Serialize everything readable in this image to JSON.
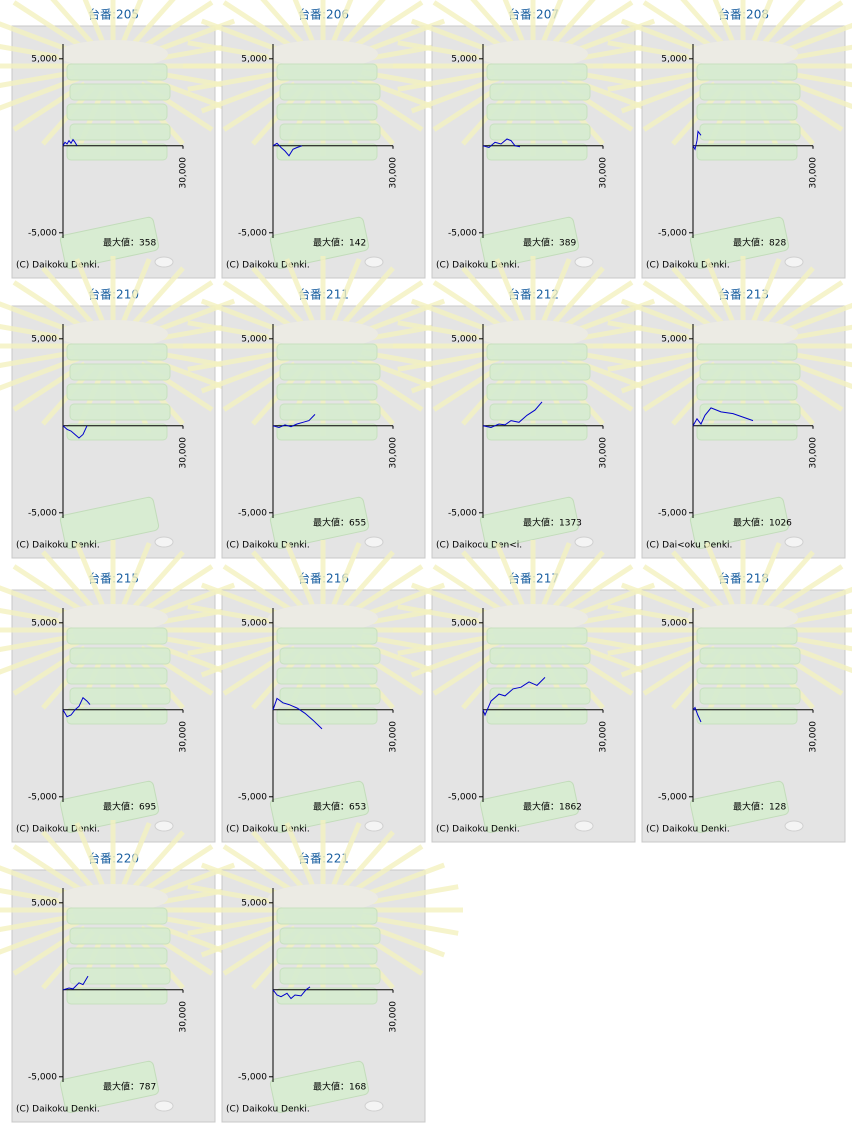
{
  "chart_data": [
    {
      "type": "line",
      "title": "台番:205",
      "x": [
        0,
        500,
        1000,
        1500,
        2000,
        2500,
        3000,
        3500
      ],
      "values": [
        0,
        200,
        100,
        300,
        150,
        358,
        200,
        0
      ],
      "color": "#0000cc",
      "xlim": [
        0,
        30000
      ],
      "ylim": [
        -5300,
        5850
      ],
      "xticks": [
        {
          "value": 30000,
          "label": "30,000"
        }
      ],
      "yticks": [
        {
          "value": 5000,
          "label": "5,000"
        },
        {
          "value": -5000,
          "label": "-5,000"
        }
      ],
      "annotation": "最大値：358",
      "credit": "(C) Daikoku Denki."
    },
    {
      "type": "line",
      "title": "台番:206",
      "x": [
        0,
        1000,
        2000,
        3000,
        4000,
        5000,
        6000,
        7250
      ],
      "values": [
        0,
        142,
        -100,
        -300,
        -575,
        -200,
        -100,
        0
      ],
      "color": "#0000cc",
      "xlim": [
        0,
        30000
      ],
      "ylim": [
        -5300,
        5850
      ],
      "xticks": [
        {
          "value": 30000,
          "label": "30,000"
        }
      ],
      "yticks": [
        {
          "value": 5000,
          "label": "5,000"
        },
        {
          "value": -5000,
          "label": "-5,000"
        }
      ],
      "annotation": "最大値：142",
      "credit": "(C) Daikoku Denki."
    },
    {
      "type": "line",
      "title": "台番:207",
      "x": [
        0,
        1500,
        3000,
        4500,
        6000,
        7000,
        8000,
        9250
      ],
      "values": [
        0,
        -100,
        200,
        100,
        389,
        300,
        0,
        -50
      ],
      "color": "#0000cc",
      "xlim": [
        0,
        30000
      ],
      "ylim": [
        -5300,
        5850
      ],
      "xticks": [
        {
          "value": 30000,
          "label": "30,000"
        }
      ],
      "yticks": [
        {
          "value": 5000,
          "label": "5,000"
        },
        {
          "value": -5000,
          "label": "-5,000"
        }
      ],
      "annotation": "最大値：389",
      "credit": "(C) Daikoku Denki."
    },
    {
      "type": "line",
      "title": "台番:208",
      "x": [
        0,
        500,
        1000,
        1250,
        2000
      ],
      "values": [
        0,
        -200,
        300,
        828,
        600
      ],
      "color": "#0000cc",
      "xlim": [
        0,
        30000
      ],
      "ylim": [
        -5300,
        5850
      ],
      "xticks": [
        {
          "value": 30000,
          "label": "30,000"
        }
      ],
      "yticks": [
        {
          "value": 5000,
          "label": "5,000"
        },
        {
          "value": -5000,
          "label": "-5,000"
        }
      ],
      "annotation": "最大値：828",
      "credit": "(C) Daikoku Denki."
    },
    {
      "type": "line",
      "title": "台番:210",
      "x": [
        0,
        1000,
        2000,
        3000,
        4000,
        5000,
        6000
      ],
      "values": [
        0,
        -200,
        -300,
        -500,
        -700,
        -500,
        0
      ],
      "color": "#0000cc",
      "xlim": [
        0,
        30000
      ],
      "ylim": [
        -5300,
        5850
      ],
      "xticks": [
        {
          "value": 30000,
          "label": "30,000"
        }
      ],
      "yticks": [
        {
          "value": 5000,
          "label": "5,000"
        },
        {
          "value": -5000,
          "label": "-5,000"
        }
      ],
      "credit": "(C) Daikoku Denki."
    },
    {
      "type": "line",
      "title": "台番:211",
      "x": [
        0,
        1500,
        3000,
        4500,
        6000,
        7500,
        9000,
        10500
      ],
      "values": [
        0,
        -100,
        50,
        -50,
        100,
        200,
        300,
        655
      ],
      "color": "#0000cc",
      "xlim": [
        0,
        30000
      ],
      "ylim": [
        -5300,
        5850
      ],
      "xticks": [
        {
          "value": 30000,
          "label": "30,000"
        }
      ],
      "yticks": [
        {
          "value": 5000,
          "label": "5,000"
        },
        {
          "value": -5000,
          "label": "-5,000"
        }
      ],
      "annotation": "最大値：655",
      "credit": "(C) Daikoku Denki."
    },
    {
      "type": "line",
      "title": "台番:212",
      "x": [
        0,
        2000,
        4000,
        5500,
        7000,
        9000,
        11000,
        13000,
        14750
      ],
      "values": [
        0,
        -100,
        100,
        50,
        300,
        200,
        600,
        900,
        1373
      ],
      "color": "#0000cc",
      "xlim": [
        0,
        30000
      ],
      "ylim": [
        -5300,
        5850
      ],
      "xticks": [
        {
          "value": 30000,
          "label": "30,000"
        }
      ],
      "yticks": [
        {
          "value": 5000,
          "label": "5,000"
        },
        {
          "value": -5000,
          "label": "-5,000"
        }
      ],
      "annotation": "最大値：1373",
      "credit": "(C) Daikocu Den<i."
    },
    {
      "type": "line",
      "title": "台番:213",
      "x": [
        0,
        1000,
        2000,
        3000,
        4500,
        7000,
        10000,
        12500,
        15000
      ],
      "values": [
        0,
        400,
        100,
        600,
        1026,
        800,
        700,
        500,
        300
      ],
      "color": "#0000cc",
      "xlim": [
        0,
        30000
      ],
      "ylim": [
        -5300,
        5850
      ],
      "xticks": [
        {
          "value": 30000,
          "label": "30,000"
        }
      ],
      "yticks": [
        {
          "value": 5000,
          "label": "5,000"
        },
        {
          "value": -5000,
          "label": "-5,000"
        }
      ],
      "annotation": "最大値：1026",
      "credit": "(C) Dai<oku Denki."
    },
    {
      "type": "line",
      "title": "台番:215",
      "x": [
        0,
        1000,
        2000,
        3000,
        4000,
        5000,
        6000,
        6750
      ],
      "values": [
        0,
        -400,
        -300,
        0,
        200,
        695,
        500,
        300
      ],
      "color": "#0000cc",
      "xlim": [
        0,
        30000
      ],
      "ylim": [
        -5300,
        5850
      ],
      "xticks": [
        {
          "value": 30000,
          "label": "30,000"
        }
      ],
      "yticks": [
        {
          "value": 5000,
          "label": "5,000"
        },
        {
          "value": -5000,
          "label": "-5,000"
        }
      ],
      "annotation": "最大値：695",
      "credit": "(C) Daikoku Denki."
    },
    {
      "type": "line",
      "title": "台番:216",
      "x": [
        0,
        1000,
        2500,
        4000,
        6000,
        8000,
        10000,
        12250
      ],
      "values": [
        0,
        653,
        400,
        300,
        100,
        -200,
        -600,
        -1100
      ],
      "color": "#0000cc",
      "xlim": [
        0,
        30000
      ],
      "ylim": [
        -5300,
        5850
      ],
      "xticks": [
        {
          "value": 30000,
          "label": "30,000"
        }
      ],
      "yticks": [
        {
          "value": 5000,
          "label": "5,000"
        },
        {
          "value": -5000,
          "label": "-5,000"
        }
      ],
      "annotation": "最大値：653",
      "credit": "(C) Daikoku Denki."
    },
    {
      "type": "line",
      "title": "台番:217",
      "x": [
        0,
        500,
        2000,
        4000,
        5500,
        7500,
        9500,
        11500,
        13500,
        15500
      ],
      "values": [
        0,
        -300,
        500,
        900,
        800,
        1200,
        1300,
        1600,
        1400,
        1862
      ],
      "color": "#0000cc",
      "xlim": [
        0,
        30000
      ],
      "ylim": [
        -5300,
        5850
      ],
      "xticks": [
        {
          "value": 30000,
          "label": "30,000"
        }
      ],
      "yticks": [
        {
          "value": 5000,
          "label": "5,000"
        },
        {
          "value": -5000,
          "label": "-5,000"
        }
      ],
      "annotation": "最大値：1862",
      "credit": "(C) Daikoku Denki."
    },
    {
      "type": "line",
      "title": "台番:218",
      "x": [
        0,
        500,
        1200,
        2000
      ],
      "values": [
        0,
        128,
        -300,
        -700
      ],
      "color": "#0000cc",
      "xlim": [
        0,
        30000
      ],
      "ylim": [
        -5300,
        5850
      ],
      "xticks": [
        {
          "value": 30000,
          "label": "30,000"
        }
      ],
      "yticks": [
        {
          "value": 5000,
          "label": "5,000"
        },
        {
          "value": -5000,
          "label": "-5,000"
        }
      ],
      "annotation": "最大値：128",
      "credit": "(C) Daikoku Denki."
    },
    {
      "type": "line",
      "title": "台番:220",
      "x": [
        0,
        1500,
        2500,
        4000,
        5000,
        6250
      ],
      "values": [
        0,
        100,
        50,
        400,
        300,
        787
      ],
      "color": "#0000cc",
      "xlim": [
        0,
        30000
      ],
      "ylim": [
        -5300,
        5850
      ],
      "xticks": [
        {
          "value": 30000,
          "label": "30,000"
        }
      ],
      "yticks": [
        {
          "value": 5000,
          "label": "5,000"
        },
        {
          "value": -5000,
          "label": "-5,000"
        }
      ],
      "annotation": "最大値：787",
      "credit": "(C) Daikoku Denki."
    },
    {
      "type": "line",
      "title": "台番:221",
      "x": [
        0,
        1000,
        2000,
        3500,
        4500,
        5500,
        7000,
        8250,
        9250
      ],
      "values": [
        0,
        -300,
        -400,
        -200,
        -500,
        -300,
        -350,
        0,
        168
      ],
      "color": "#0000cc",
      "xlim": [
        0,
        30000
      ],
      "ylim": [
        -5300,
        5850
      ],
      "xticks": [
        {
          "value": 30000,
          "label": "30,000"
        }
      ],
      "yticks": [
        {
          "value": 5000,
          "label": "5,000"
        },
        {
          "value": -5000,
          "label": "-5,000"
        }
      ],
      "annotation": "最大値：168",
      "credit": "(C) Daikoku Denki."
    }
  ]
}
